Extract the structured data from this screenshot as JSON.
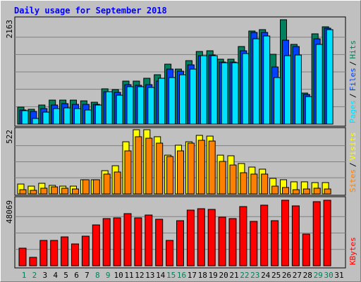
{
  "title": "Daily usage for September 2018",
  "legend_separator": "/",
  "categories": [
    "1",
    "2",
    "3",
    "4",
    "5",
    "6",
    "7",
    "8",
    "9",
    "10",
    "11",
    "12",
    "13",
    "14",
    "15",
    "16",
    "17",
    "18",
    "19",
    "20",
    "21",
    "22",
    "23",
    "24",
    "25",
    "26",
    "27",
    "28",
    "29",
    "30",
    "31"
  ],
  "category_colors": [
    "#00805C",
    "#00805C",
    "#000000",
    "#000000",
    "#000000",
    "#000000",
    "#000000",
    "#00805C",
    "#00805C",
    "#000000",
    "#000000",
    "#000000",
    "#000000",
    "#000000",
    "#00805C",
    "#00805C",
    "#000000",
    "#000000",
    "#000000",
    "#000000",
    "#000000",
    "#00805C",
    "#00805C",
    "#000000",
    "#000000",
    "#000000",
    "#000000",
    "#000000",
    "#00805C",
    "#00805C",
    "#000000"
  ],
  "chart_data": [
    {
      "type": "bar",
      "ylim": [
        0,
        2163
      ],
      "yticks": [
        2163
      ],
      "gridlines": [
        360,
        721,
        1081,
        1442,
        1802
      ],
      "series": [
        {
          "name": "Hits",
          "color": "#00805C",
          "values": [
            351,
            307,
            395,
            497,
            497,
            497,
            482,
            453,
            731,
            716,
            891,
            891,
            950,
            1023,
            1242,
            1140,
            1315,
            1505,
            1520,
            1345,
            1345,
            1608,
            1929,
            1958,
            1447,
            2163,
            1652,
            643,
            1871,
            2017,
            null
          ]
        },
        {
          "name": "Files",
          "color": "#0040FF",
          "values": [
            292,
            263,
            322,
            395,
            424,
            409,
            409,
            409,
            672,
            658,
            818,
            804,
            818,
            891,
            1140,
            1096,
            1228,
            1418,
            1432,
            1286,
            1286,
            1520,
            1900,
            1900,
            1184,
            1739,
            1608,
            614,
            1768,
            1988,
            null
          ]
        },
        {
          "name": "Pages",
          "color": "#00E0FF",
          "values": [
            278,
            117,
            248,
            322,
            336,
            322,
            292,
            395,
            672,
            599,
            775,
            775,
            760,
            950,
            965,
            1023,
            1140,
            1418,
            1418,
            1272,
            1272,
            1462,
            1768,
            1827,
            965,
            1418,
            1432,
            570,
            1652,
            1958,
            null
          ]
        }
      ]
    },
    {
      "type": "bar",
      "ylim": [
        0,
        522
      ],
      "yticks": [
        522
      ],
      "gridlines": [
        131,
        261,
        392
      ],
      "series": [
        {
          "name": "Visits",
          "color": "#FFFF00",
          "values": [
            80,
            63,
            86,
            69,
            63,
            63,
            115,
            115,
            189,
            229,
            424,
            522,
            522,
            465,
            315,
            396,
            424,
            476,
            470,
            315,
            310,
            247,
            218,
            201,
            126,
            115,
            98,
            98,
            92,
            92,
            null
          ]
        },
        {
          "name": "Sites",
          "color": "#FF8000",
          "values": [
            34,
            29,
            46,
            57,
            46,
            40,
            115,
            115,
            161,
            178,
            350,
            465,
            453,
            413,
            304,
            350,
            413,
            436,
            430,
            264,
            235,
            172,
            161,
            161,
            63,
            52,
            34,
            40,
            46,
            40,
            null
          ]
        }
      ]
    },
    {
      "type": "bar",
      "ylim": [
        0,
        48069
      ],
      "yticks": [
        48069
      ],
      "gridlines": [
        12017,
        24034,
        36052
      ],
      "series": [
        {
          "name": "KBytes",
          "color": "#FF0000",
          "values": [
            12922,
            6202,
            18608,
            18608,
            21193,
            16024,
            21710,
            29980,
            34632,
            35149,
            38250,
            35149,
            37217,
            34115,
            18608,
            33081,
            40835,
            41869,
            41352,
            35666,
            34632,
            43419,
            32564,
            44453,
            33081,
            48069,
            43936,
            23261,
            47035,
            48069,
            null
          ]
        }
      ]
    }
  ]
}
